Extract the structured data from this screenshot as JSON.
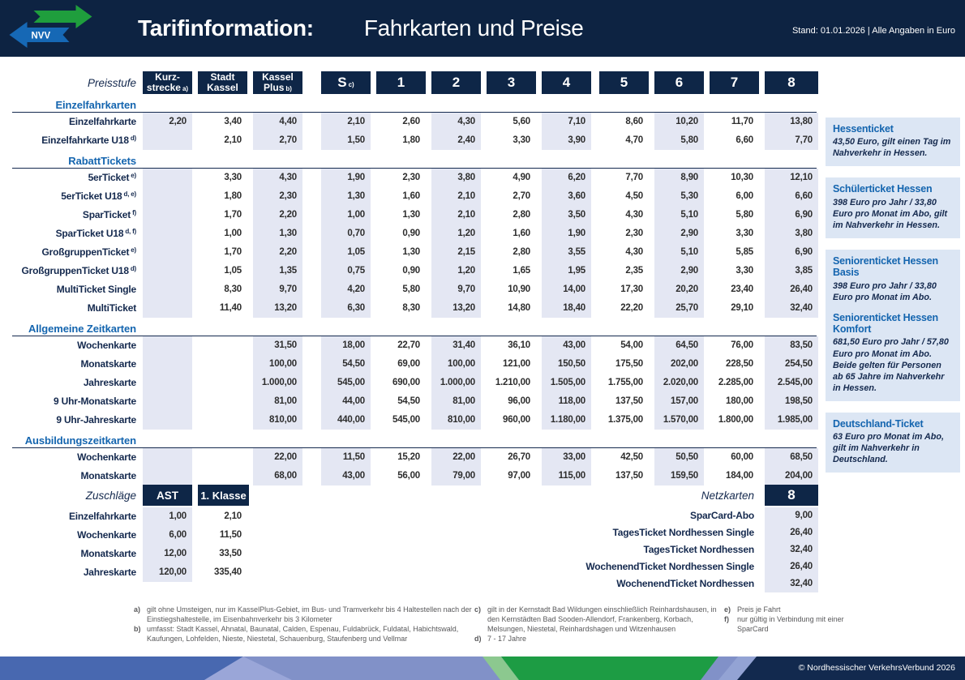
{
  "header": {
    "logo_text": "NVV",
    "title_bold": "Tarifinformation:",
    "title_rest": "Fahrkarten und Preise",
    "stand": "Stand: 01.01.2026 | Alle Angaben in Euro"
  },
  "table": {
    "price_level_label": "Preisstufe",
    "columns": [
      {
        "id": "kurzstrecke",
        "lines": [
          "Kurz-",
          "strecke"
        ],
        "sup": "a)"
      },
      {
        "id": "stadt-kassel",
        "lines": [
          "Stadt",
          "Kassel"
        ],
        "sup": ""
      },
      {
        "id": "kassel-plus",
        "lines": [
          "Kassel",
          "Plus"
        ],
        "sup": "b)"
      },
      {
        "id": "s",
        "lines": [
          "S"
        ],
        "sup": "c)",
        "big": true
      },
      {
        "id": "1",
        "lines": [
          "1"
        ],
        "sup": "",
        "big": true
      },
      {
        "id": "2",
        "lines": [
          "2"
        ],
        "sup": "",
        "big": true
      },
      {
        "id": "3",
        "lines": [
          "3"
        ],
        "sup": "",
        "big": true
      },
      {
        "id": "4",
        "lines": [
          "4"
        ],
        "sup": "",
        "big": true
      },
      {
        "id": "5",
        "lines": [
          "5"
        ],
        "sup": "",
        "big": true
      },
      {
        "id": "6",
        "lines": [
          "6"
        ],
        "sup": "",
        "big": true
      },
      {
        "id": "7",
        "lines": [
          "7"
        ],
        "sup": "",
        "big": true
      },
      {
        "id": "8",
        "lines": [
          "8"
        ],
        "sup": "",
        "big": true
      }
    ],
    "shaded_columns": [
      0,
      2,
      3,
      5,
      7,
      9,
      11
    ],
    "sections": [
      {
        "title": "Einzelfahrkarten",
        "rows": [
          {
            "label": "Einzelfahrkarte",
            "sup": "",
            "values": [
              "2,20",
              "3,40",
              "4,40",
              "2,10",
              "2,60",
              "4,30",
              "5,60",
              "7,10",
              "8,60",
              "10,20",
              "11,70",
              "13,80"
            ]
          },
          {
            "label": "Einzelfahrkarte U18",
            "sup": "d)",
            "values": [
              "",
              "2,10",
              "2,70",
              "1,50",
              "1,80",
              "2,40",
              "3,30",
              "3,90",
              "4,70",
              "5,80",
              "6,60",
              "7,70"
            ]
          }
        ]
      },
      {
        "title": "RabattTickets",
        "rows": [
          {
            "label": "5erTicket",
            "sup": "e)",
            "values": [
              "",
              "3,30",
              "4,30",
              "1,90",
              "2,30",
              "3,80",
              "4,90",
              "6,20",
              "7,70",
              "8,90",
              "10,30",
              "12,10"
            ]
          },
          {
            "label": "5erTicket U18",
            "sup": "d, e)",
            "values": [
              "",
              "1,80",
              "2,30",
              "1,30",
              "1,60",
              "2,10",
              "2,70",
              "3,60",
              "4,50",
              "5,30",
              "6,00",
              "6,60"
            ]
          },
          {
            "label": "SparTicket",
            "sup": "f)",
            "values": [
              "",
              "1,70",
              "2,20",
              "1,00",
              "1,30",
              "2,10",
              "2,80",
              "3,50",
              "4,30",
              "5,10",
              "5,80",
              "6,90"
            ]
          },
          {
            "label": "SparTicket U18",
            "sup": "d, f)",
            "values": [
              "",
              "1,00",
              "1,30",
              "0,70",
              "0,90",
              "1,20",
              "1,60",
              "1,90",
              "2,30",
              "2,90",
              "3,30",
              "3,80"
            ]
          },
          {
            "label": "GroßgruppenTicket",
            "sup": "e)",
            "values": [
              "",
              "1,70",
              "2,20",
              "1,05",
              "1,30",
              "2,15",
              "2,80",
              "3,55",
              "4,30",
              "5,10",
              "5,85",
              "6,90"
            ]
          },
          {
            "label": "GroßgruppenTicket U18",
            "sup": "d)",
            "values": [
              "",
              "1,05",
              "1,35",
              "0,75",
              "0,90",
              "1,20",
              "1,65",
              "1,95",
              "2,35",
              "2,90",
              "3,30",
              "3,85"
            ]
          },
          {
            "label": "MultiTicket Single",
            "sup": "",
            "values": [
              "",
              "8,30",
              "9,70",
              "4,20",
              "5,80",
              "9,70",
              "10,90",
              "14,00",
              "17,30",
              "20,20",
              "23,40",
              "26,40"
            ]
          },
          {
            "label": "MultiTicket",
            "sup": "",
            "values": [
              "",
              "11,40",
              "13,20",
              "6,30",
              "8,30",
              "13,20",
              "14,80",
              "18,40",
              "22,20",
              "25,70",
              "29,10",
              "32,40"
            ]
          }
        ]
      },
      {
        "title": "Allgemeine Zeitkarten",
        "rows": [
          {
            "label": "Wochenkarte",
            "sup": "",
            "values": [
              "",
              "",
              "31,50",
              "18,00",
              "22,70",
              "31,40",
              "36,10",
              "43,00",
              "54,00",
              "64,50",
              "76,00",
              "83,50"
            ]
          },
          {
            "label": "Monatskarte",
            "sup": "",
            "values": [
              "",
              "",
              "100,00",
              "54,50",
              "69,00",
              "100,00",
              "121,00",
              "150,50",
              "175,50",
              "202,00",
              "228,50",
              "254,50"
            ]
          },
          {
            "label": "Jahreskarte",
            "sup": "",
            "values": [
              "",
              "",
              "1.000,00",
              "545,00",
              "690,00",
              "1.000,00",
              "1.210,00",
              "1.505,00",
              "1.755,00",
              "2.020,00",
              "2.285,00",
              "2.545,00"
            ]
          },
          {
            "label": "9 Uhr-Monatskarte",
            "sup": "",
            "values": [
              "",
              "",
              "81,00",
              "44,00",
              "54,50",
              "81,00",
              "96,00",
              "118,00",
              "137,50",
              "157,00",
              "180,00",
              "198,50"
            ]
          },
          {
            "label": "9 Uhr-Jahreskarte",
            "sup": "",
            "values": [
              "",
              "",
              "810,00",
              "440,00",
              "545,00",
              "810,00",
              "960,00",
              "1.180,00",
              "1.375,00",
              "1.570,00",
              "1.800,00",
              "1.985,00"
            ]
          }
        ]
      },
      {
        "title": "Ausbildungszeitkarten",
        "rows": [
          {
            "label": "Wochenkarte",
            "sup": "",
            "values": [
              "",
              "",
              "22,00",
              "11,50",
              "15,20",
              "22,00",
              "26,70",
              "33,00",
              "42,50",
              "50,50",
              "60,00",
              "68,50"
            ]
          },
          {
            "label": "Monatskarte",
            "sup": "",
            "values": [
              "",
              "",
              "68,00",
              "43,00",
              "56,00",
              "79,00",
              "97,00",
              "115,00",
              "137,50",
              "159,50",
              "184,00",
              "204,00"
            ]
          }
        ]
      }
    ]
  },
  "zuschlaege": {
    "label": "Zuschläge",
    "columns": [
      "AST",
      "1. Klasse"
    ],
    "rows": [
      {
        "label": "Einzelfahrkarte",
        "values": [
          "1,00",
          "2,10"
        ]
      },
      {
        "label": "Wochenkarte",
        "values": [
          "6,00",
          "11,50"
        ]
      },
      {
        "label": "Monatskarte",
        "values": [
          "12,00",
          "33,50"
        ]
      },
      {
        "label": "Jahreskarte",
        "values": [
          "120,00",
          "335,40"
        ]
      }
    ]
  },
  "netzkarten": {
    "label": "Netzkarten",
    "column": "8",
    "rows": [
      {
        "label": "SparCard-Abo",
        "value": "9,00"
      },
      {
        "label": "TagesTicket Nordhessen Single",
        "value": "26,40"
      },
      {
        "label": "TagesTicket Nordhessen",
        "value": "32,40"
      },
      {
        "label": "WochenendTicket Nordhessen Single",
        "value": "26,40"
      },
      {
        "label": "WochenendTicket Nordhessen",
        "value": "32,40"
      }
    ]
  },
  "info_boxes": [
    {
      "entries": [
        {
          "title": "Hessenticket",
          "body": "43,50 Euro, gilt einen Tag im Nahverkehr in Hessen."
        }
      ]
    },
    {
      "entries": [
        {
          "title": "Schülerticket Hessen",
          "body": "398 Euro pro Jahr / 33,80 Euro pro Monat im Abo, gilt im Nahverkehr in Hessen."
        }
      ]
    },
    {
      "entries": [
        {
          "title": "Seniorenticket Hessen Basis",
          "body": "398 Euro pro Jahr / 33,80 Euro pro Monat im Abo."
        },
        {
          "title": "Seniorenticket Hessen Komfort",
          "body": "681,50 Euro pro Jahr / 57,80 Euro pro Monat im Abo. Beide gelten für Personen ab 65 Jahre im Nahverkehr in Hessen."
        }
      ]
    },
    {
      "entries": [
        {
          "title": "Deutschland-Ticket",
          "body": "63 Euro pro Monat im Abo, gilt im Nahverkehr in Deutschland."
        }
      ]
    }
  ],
  "footnotes": {
    "columns": [
      [
        {
          "key": "a)",
          "text": "gilt ohne Umsteigen, nur im KasselPlus-Gebiet, im Bus- und Tramverkehr bis 4 Haltestellen nach der Einstiegshaltestelle, im Eisenbahnverkehr bis 3 Kilometer"
        },
        {
          "key": "b)",
          "text": "umfasst: Stadt Kassel, Ahnatal, Baunatal, Calden, Espenau, Fuldabrück, Fuldatal, Habichtswald, Kaufungen, Lohfelden, Nieste, Niestetal, Schauenburg, Staufenberg und Vellmar"
        }
      ],
      [
        {
          "key": "c)",
          "text": "gilt in der Kernstadt Bad Wildungen einschließlich Reinhardshausen, in den Kernstädten Bad Sooden-Allendorf, Frankenberg, Korbach, Melsungen, Niestetal, Reinhardshagen und Witzenhausen"
        },
        {
          "key": "d)",
          "text": "7 - 17 Jahre"
        }
      ],
      [
        {
          "key": "e)",
          "text": "Preis je Fahrt"
        },
        {
          "key": "f)",
          "text": "nur gültig in Verbindung mit einer SparCard"
        }
      ]
    ]
  },
  "footer": {
    "copyright": "© Nordhessischer VerkehrsVerbund 2026"
  },
  "colors": {
    "header_navy": "#0d2342",
    "box_navy": "#0e2647",
    "section_blue": "#1465af",
    "shade": "#e4e7f3",
    "infobox_bg": "#dce6f4",
    "logo_green": "#1f9e3d",
    "logo_blue": "#1668b5",
    "footer_periwinkle": "#8191c8",
    "footer_blue": "#4868b0",
    "footer_green": "#1d9c44"
  }
}
